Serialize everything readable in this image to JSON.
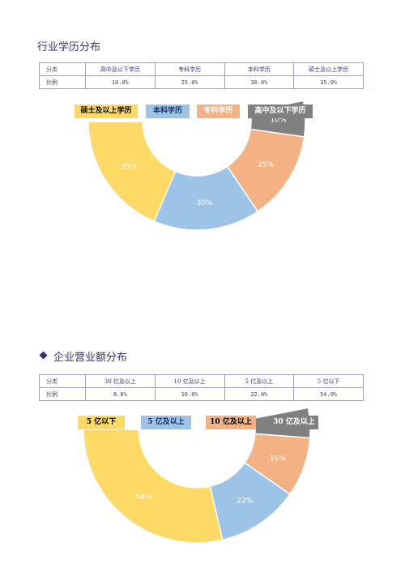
{
  "section1": {
    "title": "行业学历分布",
    "table": {
      "headers": [
        "分类",
        "高中及以下学历",
        "专科学历",
        "本科学历",
        "硕士及以上学历"
      ],
      "row_label": "比例",
      "values": [
        "10.0%",
        "25.0%",
        "30.0%",
        "35.0%"
      ]
    },
    "legend": [
      "硕士及以上学历",
      "本科学历",
      "专科学历",
      "高中及以下学历"
    ]
  },
  "section2": {
    "title": "企业营业额分布",
    "table": {
      "headers": [
        "分类",
        "30 亿及以上",
        "10 亿及以上",
        "5 亿及以上",
        "5 亿以下"
      ],
      "row_label": "比例",
      "values": [
        "8.0%",
        "16.0%",
        "22.0%",
        "54.0%"
      ]
    },
    "legend": [
      "5 亿以下",
      "5 亿及以上",
      "10 亿及以上",
      "30 亿及以上"
    ]
  },
  "chart_data": [
    {
      "type": "pie",
      "variant": "half-donut",
      "categories": [
        "硕士及以上学历",
        "本科学历",
        "专科学历",
        "高中及以下学历"
      ],
      "values": [
        35,
        30,
        25,
        10
      ],
      "labels": [
        "35%",
        "30%",
        "25%",
        "10%"
      ],
      "colors": [
        "#FFD966",
        "#9DC3E6",
        "#F4B183",
        "#808080"
      ],
      "legend_text_colors": [
        "#000000",
        "#1F2D6B",
        "#ffffff",
        "#ffffff"
      ]
    },
    {
      "type": "pie",
      "variant": "half-donut",
      "categories": [
        "5 亿以下",
        "5 亿及以上",
        "10 亿及以上",
        "30 亿及以上"
      ],
      "values": [
        54,
        22,
        16,
        8
      ],
      "labels": [
        "54%",
        "22%",
        "16%",
        "8%"
      ],
      "colors": [
        "#FFD966",
        "#9DC3E6",
        "#F4B183",
        "#808080"
      ],
      "legend_text_colors": [
        "#000000",
        "#1F2D6B",
        "#000000",
        "#ffffff"
      ]
    }
  ]
}
